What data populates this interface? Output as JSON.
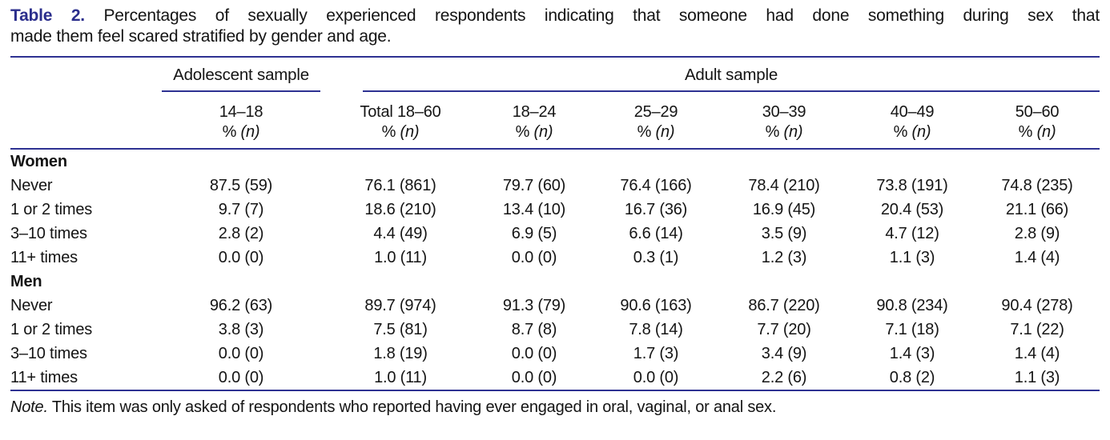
{
  "page": {
    "title_prefix": "Table 2.",
    "title_line1": "Percentages of sexually experienced respondents indicating that someone had done something during sex that",
    "title_line2": "made them feel scared stratified by gender and age.",
    "note_prefix": "Note.",
    "note_text": "This item was only asked of respondents who reported having ever engaged in oral, vaginal, or anal sex."
  },
  "colors": {
    "accent_navy": "#2e3192",
    "caption_accent": "#2b2e8c",
    "text": "#141414"
  },
  "table": {
    "group_headers": [
      {
        "label": "Adolescent sample"
      },
      {
        "label": "Adult sample"
      }
    ],
    "unit_pct": "%",
    "unit_n": "(n)",
    "columns": [
      "14–18",
      "Total 18–60",
      "18–24",
      "25–29",
      "30–39",
      "40–49",
      "50–60"
    ],
    "sections": [
      {
        "label": "Women",
        "rows": [
          {
            "label": "Never",
            "values": [
              "87.5 (59)",
              "76.1 (861)",
              "79.7 (60)",
              "76.4 (166)",
              "78.4 (210)",
              "73.8 (191)",
              "74.8 (235)"
            ]
          },
          {
            "label": "1 or 2 times",
            "values": [
              "9.7 (7)",
              "18.6 (210)",
              "13.4 (10)",
              "16.7 (36)",
              "16.9 (45)",
              "20.4 (53)",
              "21.1 (66)"
            ]
          },
          {
            "label": "3–10 times",
            "values": [
              "2.8 (2)",
              "4.4 (49)",
              "6.9 (5)",
              "6.6 (14)",
              "3.5 (9)",
              "4.7 (12)",
              "2.8 (9)"
            ]
          },
          {
            "label": "11+ times",
            "values": [
              "0.0 (0)",
              "1.0 (11)",
              "0.0 (0)",
              "0.3 (1)",
              "1.2 (3)",
              "1.1 (3)",
              "1.4 (4)"
            ]
          }
        ]
      },
      {
        "label": "Men",
        "rows": [
          {
            "label": "Never",
            "values": [
              "96.2 (63)",
              "89.7 (974)",
              "91.3 (79)",
              "90.6 (163)",
              "86.7 (220)",
              "90.8 (234)",
              "90.4 (278)"
            ]
          },
          {
            "label": "1 or 2 times",
            "values": [
              "3.8 (3)",
              "7.5 (81)",
              "8.7 (8)",
              "7.8 (14)",
              "7.7 (20)",
              "7.1 (18)",
              "7.1 (22)"
            ]
          },
          {
            "label": "3–10 times",
            "values": [
              "0.0 (0)",
              "1.8 (19)",
              "0.0 (0)",
              "1.7 (3)",
              "3.4 (9)",
              "1.4 (3)",
              "1.4 (4)"
            ]
          },
          {
            "label": "11+ times",
            "values": [
              "0.0 (0)",
              "1.0 (11)",
              "0.0 (0)",
              "0.0 (0)",
              "2.2 (6)",
              "0.8 (2)",
              "1.1 (3)"
            ]
          }
        ]
      }
    ]
  }
}
